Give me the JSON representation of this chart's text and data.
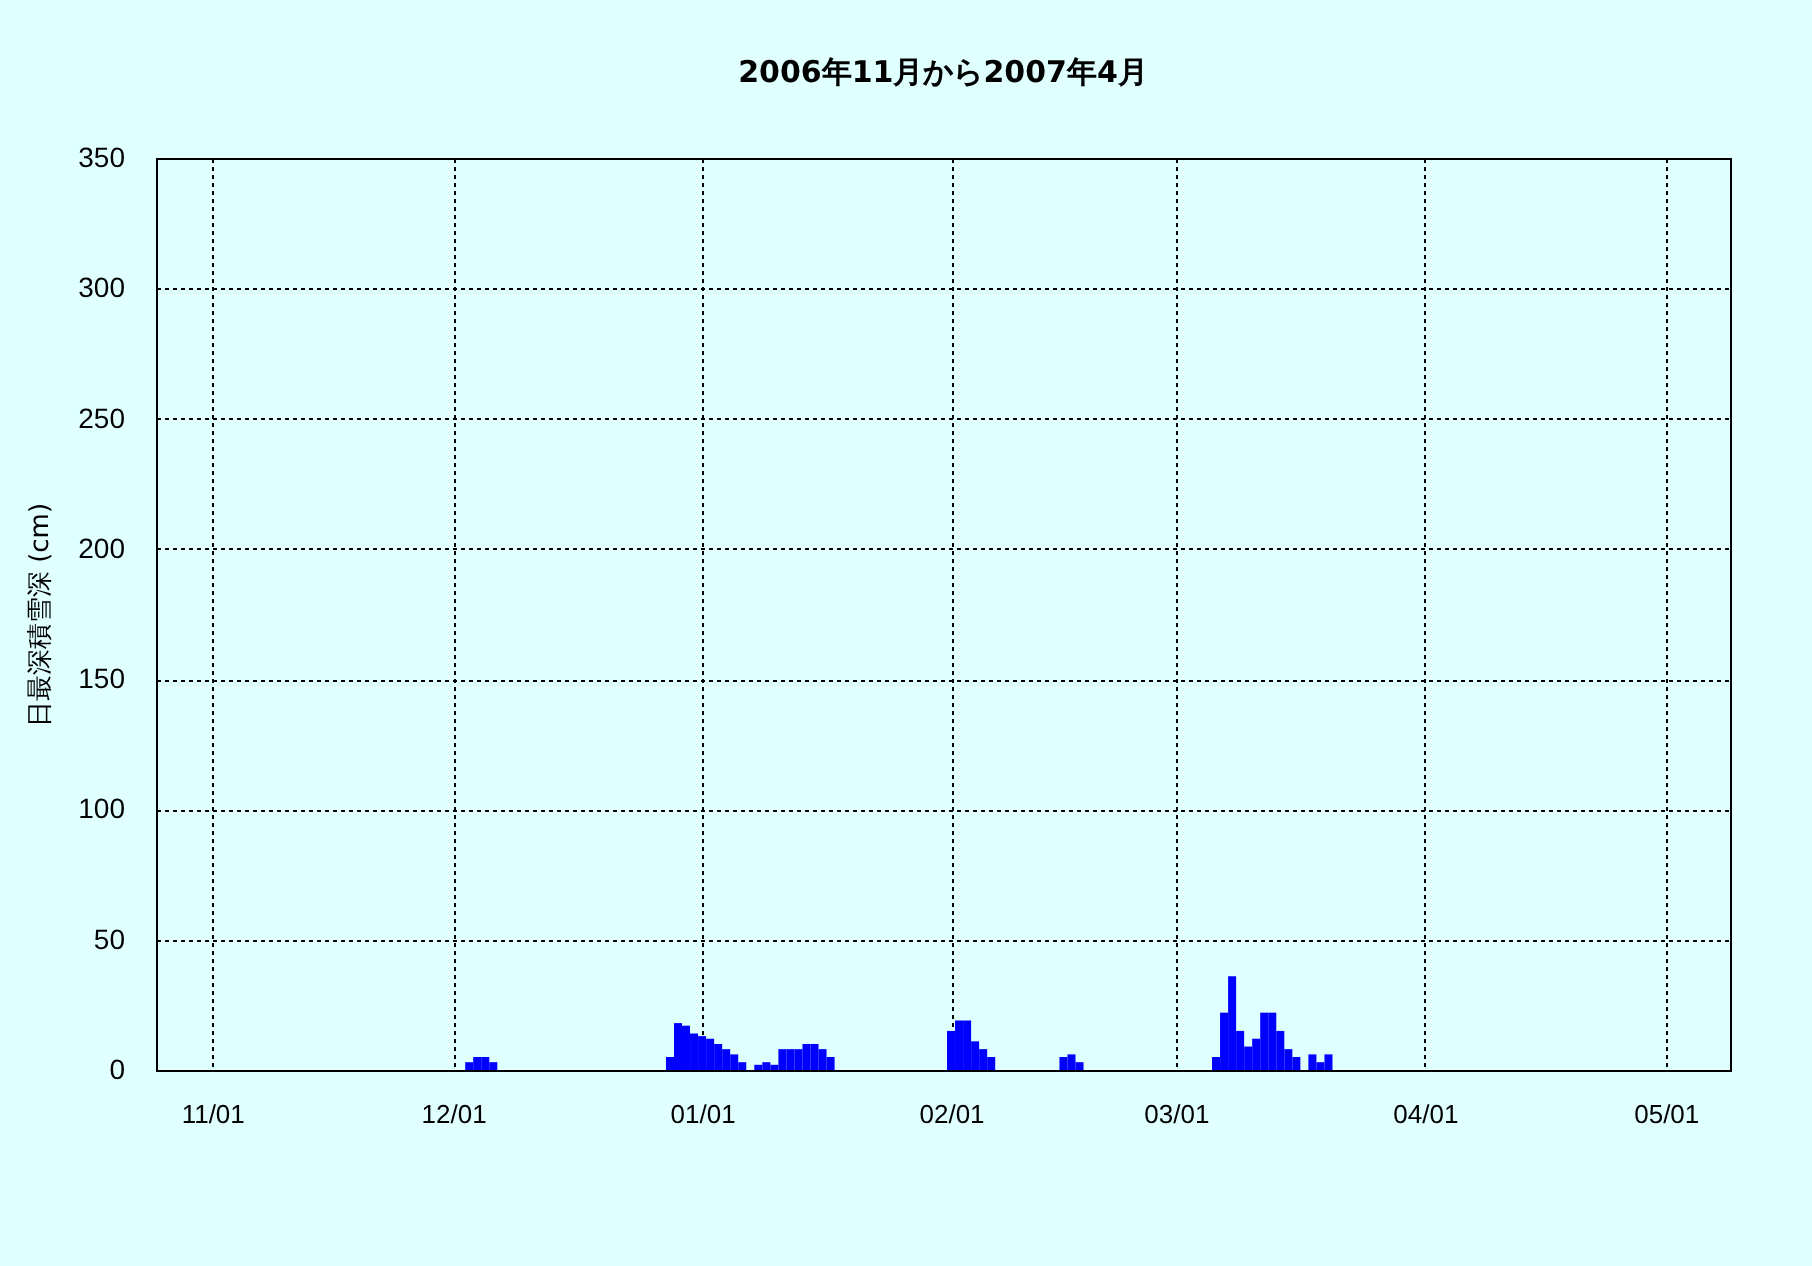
{
  "chart_data": {
    "type": "bar",
    "title": "2006年11月から2007年4月",
    "ylabel": "日最深積雪深 (cm)",
    "x": [
      "2006-12-03",
      "2006-12-04",
      "2006-12-05",
      "2006-12-06",
      "2006-12-28",
      "2006-12-29",
      "2006-12-30",
      "2006-12-31",
      "2007-01-01",
      "2007-01-02",
      "2007-01-03",
      "2007-01-04",
      "2007-01-05",
      "2007-01-06",
      "2007-01-08",
      "2007-01-09",
      "2007-01-10",
      "2007-01-11",
      "2007-01-12",
      "2007-01-13",
      "2007-01-14",
      "2007-01-15",
      "2007-01-16",
      "2007-01-17",
      "2007-02-01",
      "2007-02-02",
      "2007-02-03",
      "2007-02-04",
      "2007-02-05",
      "2007-02-06",
      "2007-02-15",
      "2007-02-16",
      "2007-02-17",
      "2007-03-06",
      "2007-03-07",
      "2007-03-08",
      "2007-03-09",
      "2007-03-10",
      "2007-03-11",
      "2007-03-12",
      "2007-03-13",
      "2007-03-14",
      "2007-03-15",
      "2007-03-16",
      "2007-03-18",
      "2007-03-19",
      "2007-03-20"
    ],
    "series": [
      {
        "color": "#0000ff",
        "values": [
          3,
          5,
          5,
          3,
          5,
          18,
          17,
          14,
          13,
          12,
          10,
          8,
          6,
          3,
          2,
          3,
          2,
          8,
          8,
          8,
          10,
          10,
          8,
          5,
          15,
          19,
          19,
          11,
          8,
          5,
          5,
          6,
          3,
          5,
          22,
          36,
          15,
          9,
          12,
          22,
          22,
          15,
          8,
          5,
          6,
          3,
          6
        ]
      }
    ],
    "xlim": [
      "2006-10-25",
      "2007-05-09"
    ],
    "xticks": [
      {
        "value": "2006-11-01",
        "label": "11/01"
      },
      {
        "value": "2006-12-01",
        "label": "12/01"
      },
      {
        "value": "2007-01-01",
        "label": "01/01"
      },
      {
        "value": "2007-02-01",
        "label": "02/01"
      },
      {
        "value": "2007-03-01",
        "label": "03/01"
      },
      {
        "value": "2007-04-01",
        "label": "04/01"
      },
      {
        "value": "2007-05-01",
        "label": "05/01"
      }
    ],
    "ylim": [
      0,
      350
    ],
    "yticks": [
      0,
      50,
      100,
      150,
      200,
      250,
      300,
      350
    ],
    "grid": true
  }
}
